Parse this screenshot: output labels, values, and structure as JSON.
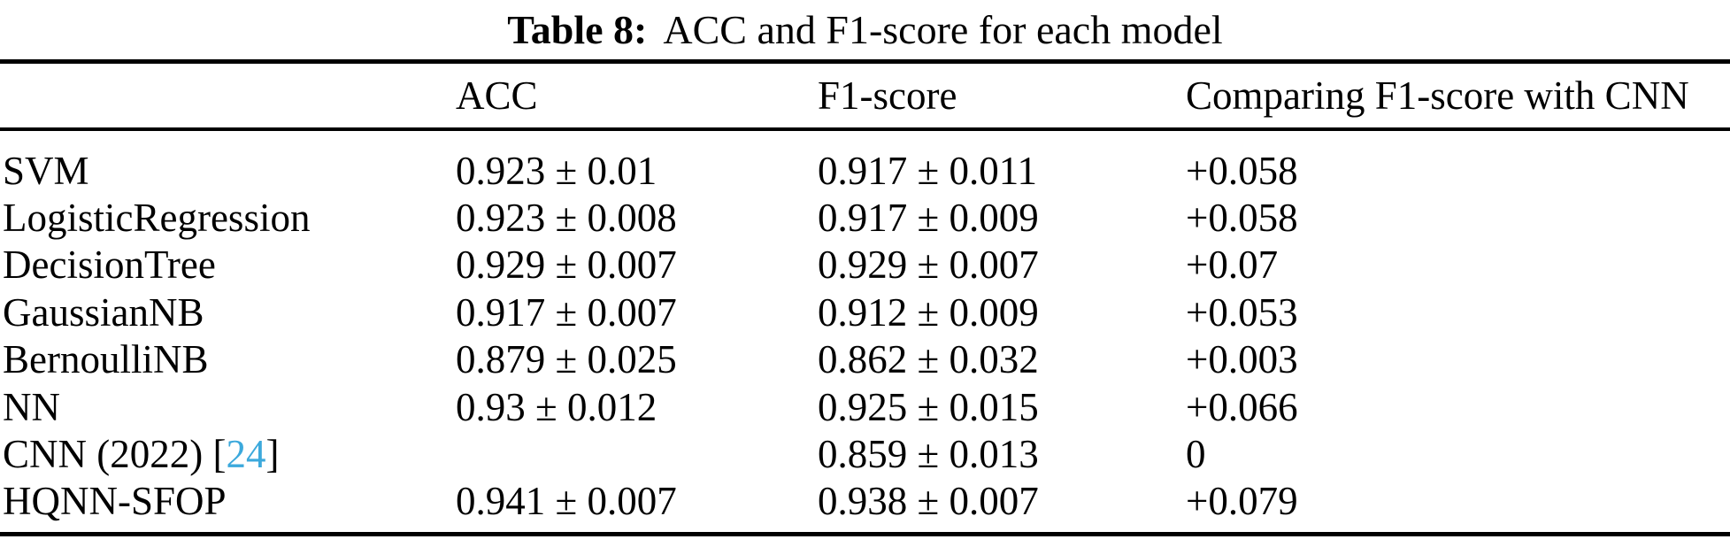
{
  "page": {
    "background_color": "#ffffff",
    "text_color": "#000000",
    "citation_color": "#3CA9DC"
  },
  "caption": {
    "label": "Table 8:",
    "text": "ACC and F1-score for each model"
  },
  "table": {
    "headers": {
      "model": "",
      "acc": "ACC",
      "f1": "F1-score",
      "compare": "Comparing F1-score with CNN"
    },
    "rows": [
      {
        "model": "SVM",
        "acc": "0.923 ± 0.01",
        "f1": "0.917 ± 0.011",
        "compare": "+0.058"
      },
      {
        "model": "LogisticRegression",
        "acc": "0.923 ± 0.008",
        "f1": "0.917 ± 0.009",
        "compare": "+0.058"
      },
      {
        "model": "DecisionTree",
        "acc": "0.929 ± 0.007",
        "f1": "0.929 ± 0.007",
        "compare": "+0.07"
      },
      {
        "model": "GaussianNB",
        "acc": "0.917 ± 0.007",
        "f1": "0.912 ± 0.009",
        "compare": "+0.053"
      },
      {
        "model": "BernoulliNB",
        "acc": "0.879 ± 0.025",
        "f1": "0.862 ± 0.032",
        "compare": "+0.003"
      },
      {
        "model": "NN",
        "acc": "0.93 ± 0.012",
        "f1": "0.925 ± 0.015",
        "compare": "+0.066"
      },
      {
        "model": "CNN (2022)",
        "citation": {
          "open": " [",
          "ref": "24",
          "close": "]"
        },
        "acc": "",
        "f1": "0.859 ± 0.013",
        "compare": "0"
      },
      {
        "model": "HQNN-SFOP",
        "acc": "0.941 ± 0.007",
        "f1": "0.938 ± 0.007",
        "compare": "+0.079"
      }
    ]
  }
}
